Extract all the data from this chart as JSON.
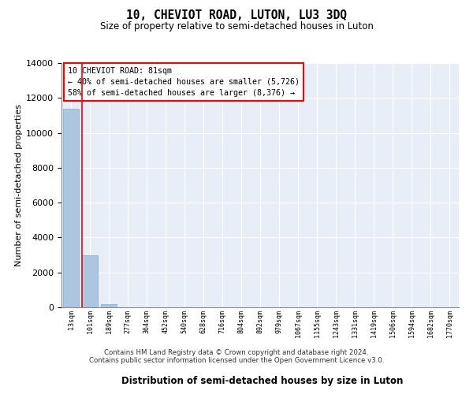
{
  "title": "10, CHEVIOT ROAD, LUTON, LU3 3DQ",
  "subtitle": "Size of property relative to semi-detached houses in Luton",
  "xlabel": "Distribution of semi-detached houses by size in Luton",
  "ylabel": "Number of semi-detached properties",
  "categories": [
    "13sqm",
    "101sqm",
    "189sqm",
    "277sqm",
    "364sqm",
    "452sqm",
    "540sqm",
    "628sqm",
    "716sqm",
    "804sqm",
    "892sqm",
    "979sqm",
    "1067sqm",
    "1155sqm",
    "1243sqm",
    "1331sqm",
    "1419sqm",
    "1506sqm",
    "1594sqm",
    "1682sqm",
    "1770sqm"
  ],
  "values": [
    11400,
    3000,
    200,
    0,
    0,
    0,
    0,
    0,
    0,
    0,
    0,
    0,
    0,
    0,
    0,
    0,
    0,
    0,
    0,
    0,
    0
  ],
  "bar_color": "#adc6e0",
  "bar_edge_color": "#7aadd0",
  "red_line_x": 0.6,
  "annotation_title": "10 CHEVIOT ROAD: 81sqm",
  "annotation_line1": "← 40% of semi-detached houses are smaller (5,726)",
  "annotation_line2": "58% of semi-detached houses are larger (8,376) →",
  "ylim": [
    0,
    14000
  ],
  "yticks": [
    0,
    2000,
    4000,
    6000,
    8000,
    10000,
    12000,
    14000
  ],
  "background_color": "#e8eef8",
  "grid_color": "#ffffff",
  "footer_line1": "Contains HM Land Registry data © Crown copyright and database right 2024.",
  "footer_line2": "Contains public sector information licensed under the Open Government Licence v3.0."
}
